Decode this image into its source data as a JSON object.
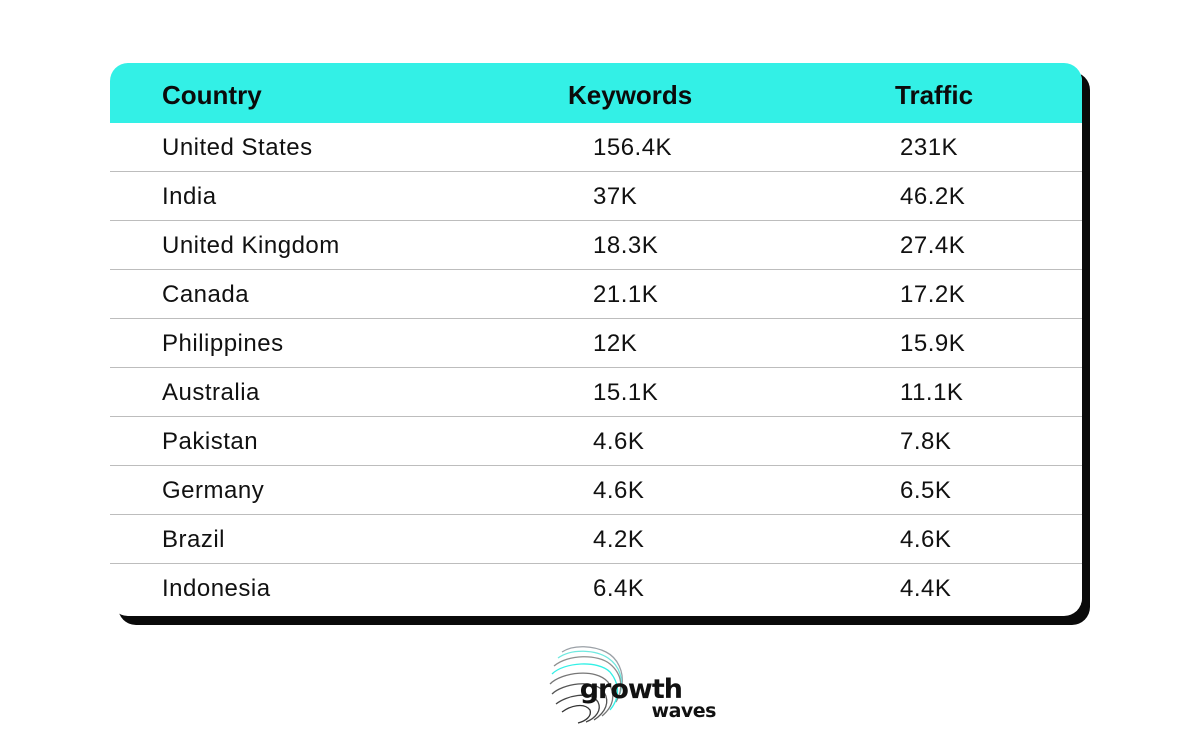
{
  "table": {
    "headers": [
      "Country",
      "Keywords",
      "Traffic"
    ],
    "rows": [
      {
        "country": "United States",
        "keywords": "156.4K",
        "traffic": "231K"
      },
      {
        "country": "India",
        "keywords": "37K",
        "traffic": "46.2K"
      },
      {
        "country": "United Kingdom",
        "keywords": "18.3K",
        "traffic": "27.4K"
      },
      {
        "country": "Canada",
        "keywords": "21.1K",
        "traffic": "17.2K"
      },
      {
        "country": "Philippines",
        "keywords": "12K",
        "traffic": "15.9K"
      },
      {
        "country": "Australia",
        "keywords": "15.1K",
        "traffic": "11.1K"
      },
      {
        "country": "Pakistan",
        "keywords": "4.6K",
        "traffic": "7.8K"
      },
      {
        "country": "Germany",
        "keywords": "4.6K",
        "traffic": "6.5K"
      },
      {
        "country": "Brazil",
        "keywords": "4.2K",
        "traffic": "4.6K"
      },
      {
        "country": "Indonesia",
        "keywords": "6.4K",
        "traffic": "4.4K"
      }
    ]
  },
  "logo": {
    "line1": "growth",
    "line2": "waves",
    "icon": "wave-lines-icon"
  },
  "colors": {
    "header_bg": "#33f0e6",
    "shadow": "#0a0a0a",
    "text": "#111111"
  }
}
